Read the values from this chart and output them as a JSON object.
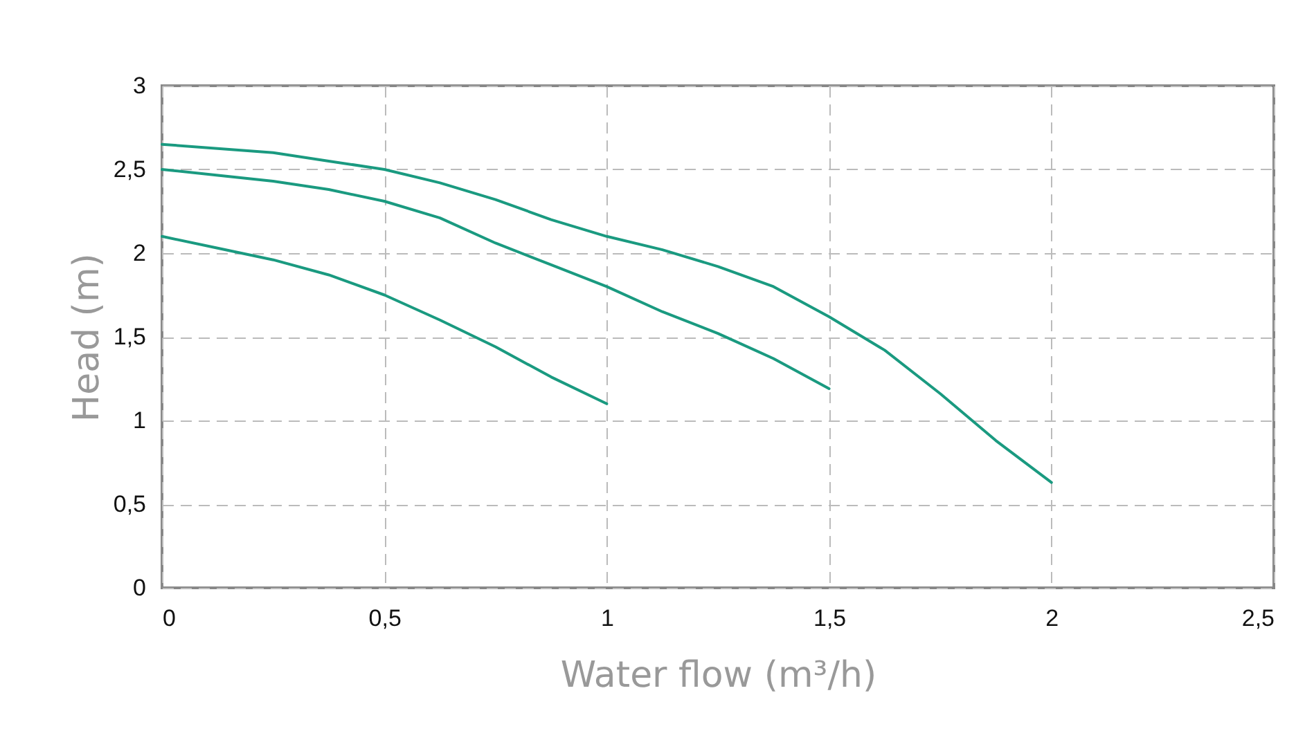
{
  "chart_data": {
    "type": "line",
    "xlabel": "Water flow (m³/h)",
    "ylabel": "Head (m)",
    "xlim": [
      0,
      2.5
    ],
    "ylim": [
      0,
      3
    ],
    "xticks": [
      0,
      {
        "value": 0.5,
        "label": "0,5"
      },
      1,
      {
        "value": 1.5,
        "label": "1,5"
      },
      2,
      {
        "value": 2.5,
        "label": "2,5"
      }
    ],
    "yticks": [
      0,
      {
        "value": 0.5,
        "label": "0,5"
      },
      1,
      {
        "value": 1.5,
        "label": "1,5"
      },
      2,
      {
        "value": 2.5,
        "label": "2,5"
      },
      3
    ],
    "grid": true,
    "line_style": "solid",
    "series": [
      {
        "color": "#1a9a80",
        "x": [
          0,
          0.25,
          0.375,
          0.5,
          0.625,
          0.75,
          0.875,
          1,
          1.125,
          1.25,
          1.375,
          1.5,
          1.625,
          1.75,
          1.875,
          2
        ],
        "values": [
          2.65,
          2.6,
          2.55,
          2.5,
          2.42,
          2.32,
          2.2,
          2.1,
          2.02,
          1.92,
          1.8,
          1.62,
          1.42,
          1.16,
          0.88,
          0.63
        ]
      },
      {
        "color": "#1a9a80",
        "x": [
          0,
          0.25,
          0.375,
          0.5,
          0.625,
          0.75,
          0.875,
          1,
          1.125,
          1.25,
          1.375,
          1.5
        ],
        "values": [
          2.5,
          2.43,
          2.38,
          2.31,
          2.21,
          2.06,
          1.93,
          1.8,
          1.65,
          1.52,
          1.37,
          1.19
        ]
      },
      {
        "color": "#1a9a80",
        "x": [
          0,
          0.125,
          0.25,
          0.375,
          0.5,
          0.625,
          0.75,
          0.875,
          1
        ],
        "values": [
          2.1,
          2.03,
          1.96,
          1.87,
          1.75,
          1.6,
          1.44,
          1.26,
          1.1
        ]
      }
    ]
  }
}
